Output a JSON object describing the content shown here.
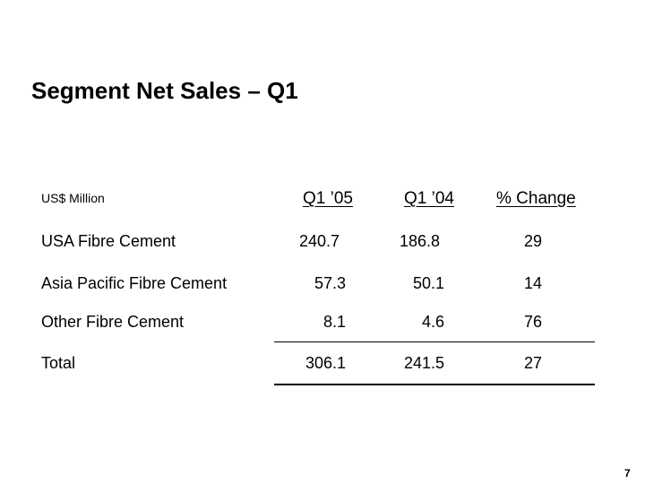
{
  "title": "Segment Net Sales – Q1",
  "units": "US$ Million",
  "columns": [
    "Q1 ’05",
    "Q1 ’04",
    "% Change"
  ],
  "rows": [
    {
      "label": "USA Fibre Cement",
      "q1_05": "240.7",
      "q1_04": "186.8",
      "change": "29"
    },
    {
      "label": "Asia Pacific Fibre Cement",
      "q1_05": "57.3",
      "q1_04": "50.1",
      "change": "14"
    },
    {
      "label": "Other Fibre Cement",
      "q1_05": "8.1",
      "q1_04": "4.6",
      "change": "76"
    },
    {
      "label": "Total",
      "q1_05": "306.1",
      "q1_04": "241.5",
      "change": "27"
    }
  ],
  "page_number": "7"
}
